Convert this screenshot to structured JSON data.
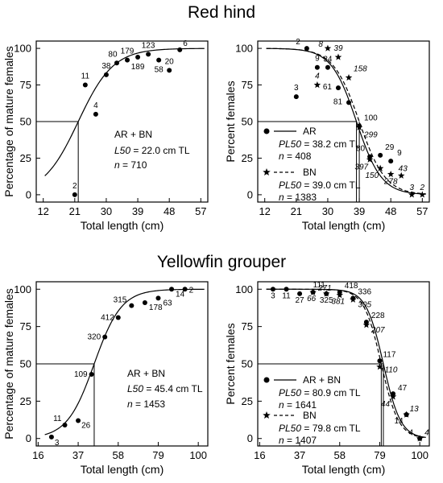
{
  "section_titles": {
    "top": "Red hind",
    "bottom": "Yellowfin grouper"
  },
  "chart_data": [
    {
      "id": "redhind-maturity",
      "type": "scatter",
      "xlabel": "Total length (cm)",
      "ylabel": "Percentage of mature females",
      "xlim": [
        10,
        59
      ],
      "ylim": [
        -5,
        105
      ],
      "xticks": [
        12,
        21,
        30,
        39,
        48,
        57
      ],
      "yticks": [
        0,
        25,
        50,
        75,
        100
      ],
      "points": [
        {
          "x": 21,
          "y": 0,
          "label": "2"
        },
        {
          "x": 24,
          "y": 75,
          "label": "11"
        },
        {
          "x": 27,
          "y": 55,
          "label": "4"
        },
        {
          "x": 30,
          "y": 82,
          "label": "38"
        },
        {
          "x": 33,
          "y": 90,
          "label": "80"
        },
        {
          "x": 36,
          "y": 92,
          "label": "179"
        },
        {
          "x": 39,
          "y": 94,
          "label": "189"
        },
        {
          "x": 42,
          "y": 96,
          "label": "123"
        },
        {
          "x": 45,
          "y": 92,
          "label": "58"
        },
        {
          "x": 48,
          "y": 85,
          "label": "20"
        },
        {
          "x": 51,
          "y": 99,
          "label": "6"
        }
      ],
      "fit": {
        "l50": 22.0,
        "slope": 0.2
      },
      "l50_line_y": 50,
      "annotations": [
        "AR + BN",
        "L50 = 22.0 cm TL",
        "n = 710"
      ]
    },
    {
      "id": "redhind-females",
      "type": "scatter",
      "xlabel": "Total length (cm)",
      "ylabel": "Percent females",
      "xlim": [
        10,
        59
      ],
      "ylim": [
        -5,
        105
      ],
      "xticks": [
        12,
        21,
        30,
        39,
        48,
        57
      ],
      "yticks": [
        0,
        25,
        50,
        75,
        100
      ],
      "series": [
        {
          "name": "AR",
          "marker": "dot",
          "dash": "solid",
          "fit": {
            "p50": 38.2,
            "slope": -0.28
          },
          "stats": [
            "PL50 = 38.2 cm TL",
            "n = 408"
          ],
          "points": [
            {
              "x": 21,
              "y": 67,
              "label": "3"
            },
            {
              "x": 24,
              "y": 100,
              "label": "2"
            },
            {
              "x": 27,
              "y": 87,
              "label": "9"
            },
            {
              "x": 30,
              "y": 87,
              "label": "34"
            },
            {
              "x": 33,
              "y": 73,
              "label": "61"
            },
            {
              "x": 36,
              "y": 63,
              "label": "81"
            },
            {
              "x": 39,
              "y": 47,
              "label": "100"
            },
            {
              "x": 42,
              "y": 26,
              "label": "80"
            },
            {
              "x": 45,
              "y": 27,
              "label": "29"
            },
            {
              "x": 48,
              "y": 23,
              "label": "9"
            }
          ]
        },
        {
          "name": "BN",
          "marker": "star",
          "dash": "dashed",
          "fit": {
            "p50": 39.0,
            "slope": -0.27
          },
          "stats": [
            "PL50 = 39.0 cm TL",
            "n = 1383"
          ],
          "points": [
            {
              "x": 27,
              "y": 75,
              "label": "4"
            },
            {
              "x": 30,
              "y": 100,
              "label": "8"
            },
            {
              "x": 33,
              "y": 94,
              "label": "39"
            },
            {
              "x": 36,
              "y": 80,
              "label": "158"
            },
            {
              "x": 39,
              "y": 46,
              "label": "299"
            },
            {
              "x": 42,
              "y": 24,
              "label": "397"
            },
            {
              "x": 45,
              "y": 18,
              "label": "150"
            },
            {
              "x": 48,
              "y": 14,
              "label": "278"
            },
            {
              "x": 51,
              "y": 13,
              "label": "43"
            },
            {
              "x": 54,
              "y": 0,
              "label": "3"
            },
            {
              "x": 57,
              "y": 0,
              "label": "2"
            }
          ]
        }
      ]
    },
    {
      "id": "yellowfin-maturity",
      "type": "scatter",
      "xlabel": "Total length (cm)",
      "ylabel": "Percentage of mature females",
      "xlim": [
        15,
        105
      ],
      "ylim": [
        -5,
        105
      ],
      "xticks": [
        16,
        37,
        58,
        79,
        100
      ],
      "yticks": [
        0,
        25,
        50,
        75,
        100
      ],
      "points": [
        {
          "x": 23,
          "y": 1,
          "label": "3"
        },
        {
          "x": 30,
          "y": 9,
          "label": "11"
        },
        {
          "x": 37,
          "y": 12,
          "label": "26"
        },
        {
          "x": 44,
          "y": 43,
          "label": "109"
        },
        {
          "x": 51,
          "y": 68,
          "label": "320"
        },
        {
          "x": 58,
          "y": 81,
          "label": "412"
        },
        {
          "x": 65,
          "y": 89,
          "label": "315"
        },
        {
          "x": 72,
          "y": 91,
          "label": "178"
        },
        {
          "x": 79,
          "y": 94,
          "label": "63"
        },
        {
          "x": 86,
          "y": 100,
          "label": "14"
        },
        {
          "x": 93,
          "y": 100,
          "label": "2"
        }
      ],
      "fit": {
        "l50": 45.4,
        "slope": 0.14
      },
      "l50_line_y": 50,
      "annotations": [
        "AR + BN",
        "L50 = 45.4 cm TL",
        "n = 1453"
      ]
    },
    {
      "id": "yellowfin-females",
      "type": "scatter",
      "xlabel": "Total length (cm)",
      "ylabel": "Percent females",
      "xlim": [
        15,
        105
      ],
      "ylim": [
        -5,
        105
      ],
      "xticks": [
        16,
        37,
        58,
        79,
        100
      ],
      "yticks": [
        0,
        25,
        50,
        75,
        100
      ],
      "series": [
        {
          "name": "AR + BN",
          "marker": "dot",
          "dash": "solid",
          "fit": {
            "p50": 80.9,
            "slope": -0.22
          },
          "stats": [
            "PL50 = 80.9 cm TL",
            "n = 1641"
          ],
          "points": [
            {
              "x": 23,
              "y": 100,
              "label": "3"
            },
            {
              "x": 30,
              "y": 100,
              "label": "11"
            },
            {
              "x": 37,
              "y": 97,
              "label": "27"
            },
            {
              "x": 44,
              "y": 98,
              "label": "111"
            },
            {
              "x": 51,
              "y": 97,
              "label": "325"
            },
            {
              "x": 58,
              "y": 98,
              "label": "418"
            },
            {
              "x": 65,
              "y": 94,
              "label": "336"
            },
            {
              "x": 72,
              "y": 78,
              "label": "228"
            },
            {
              "x": 79,
              "y": 52,
              "label": "117"
            },
            {
              "x": 86,
              "y": 30,
              "label": "47"
            },
            {
              "x": 93,
              "y": 16,
              "label": "14"
            },
            {
              "x": 100,
              "y": 0,
              "label": "4"
            }
          ]
        },
        {
          "name": "BN",
          "marker": "star",
          "dash": "dashed",
          "fit": {
            "p50": 79.8,
            "slope": -0.22
          },
          "stats": [
            "PL50 = 79.8 cm TL",
            "n = 1407"
          ],
          "points": [
            {
              "x": 44,
              "y": 98,
              "label": "66"
            },
            {
              "x": 51,
              "y": 97,
              "label": "271"
            },
            {
              "x": 58,
              "y": 96,
              "label": "381"
            },
            {
              "x": 65,
              "y": 93,
              "label": "305"
            },
            {
              "x": 72,
              "y": 76,
              "label": "207"
            },
            {
              "x": 79,
              "y": 48,
              "label": "110"
            },
            {
              "x": 86,
              "y": 28,
              "label": "44"
            },
            {
              "x": 93,
              "y": 16,
              "label": "13"
            },
            {
              "x": 100,
              "y": 0,
              "label": "4"
            }
          ]
        }
      ]
    }
  ]
}
